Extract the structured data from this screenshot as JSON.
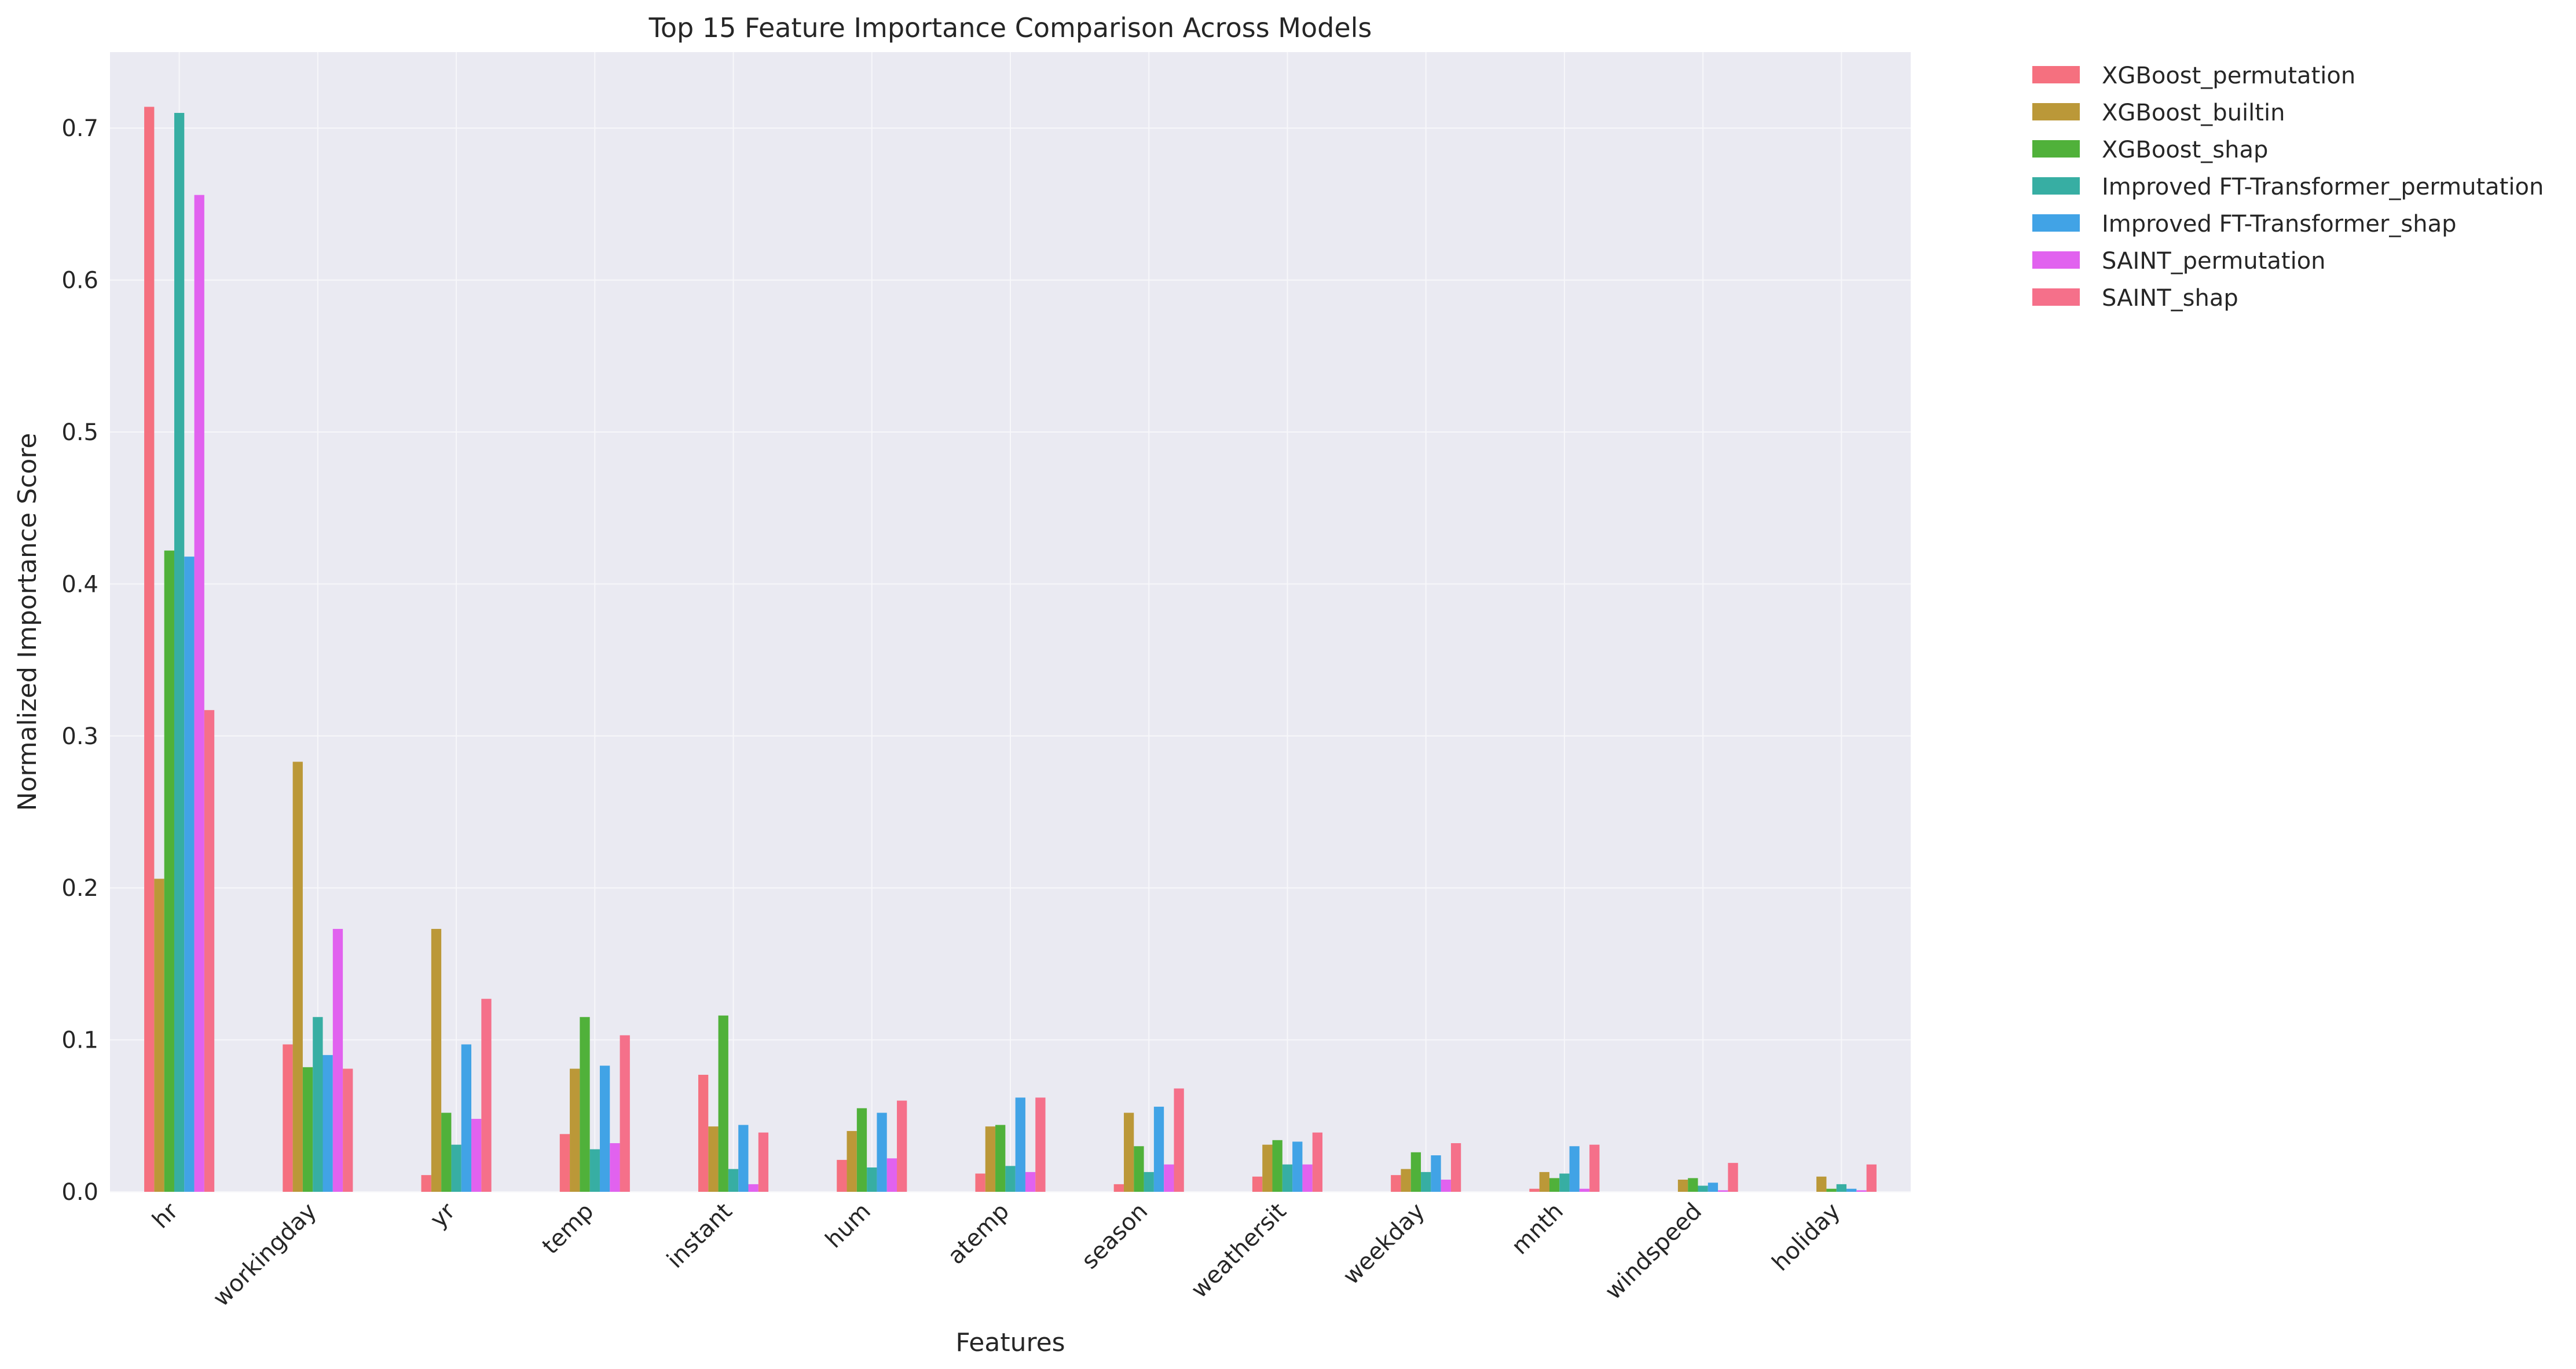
{
  "chart_data": {
    "type": "bar",
    "title": "Top 15 Feature Importance Comparison Across Models",
    "xlabel": "Features",
    "ylabel": "Normalized Importance Score",
    "ylim": [
      0,
      0.75
    ],
    "yticks": [
      "0.0",
      "0.1",
      "0.2",
      "0.3",
      "0.4",
      "0.5",
      "0.6",
      "0.7"
    ],
    "grid": true,
    "legend_position": "outside-top-right",
    "categories": [
      "hr",
      "workingday",
      "yr",
      "temp",
      "instant",
      "hum",
      "atemp",
      "season",
      "weathersit",
      "weekday",
      "mnth",
      "windspeed",
      "holiday"
    ],
    "series": [
      {
        "name": "XGBoost_permutation",
        "color": "#f5707f",
        "values": [
          0.714,
          0.097,
          0.011,
          0.038,
          0.077,
          0.021,
          0.012,
          0.005,
          0.01,
          0.011,
          0.002,
          0.0,
          0.0
        ]
      },
      {
        "name": "XGBoost_builtin",
        "color": "#bb9838",
        "values": [
          0.206,
          0.283,
          0.173,
          0.081,
          0.043,
          0.04,
          0.043,
          0.052,
          0.031,
          0.015,
          0.013,
          0.008,
          0.01
        ]
      },
      {
        "name": "XGBoost_shap",
        "color": "#50b13a",
        "values": [
          0.422,
          0.082,
          0.052,
          0.115,
          0.116,
          0.055,
          0.044,
          0.03,
          0.034,
          0.026,
          0.009,
          0.009,
          0.002
        ]
      },
      {
        "name": "Improved FT-Transformer_permutation",
        "color": "#37aea3",
        "values": [
          0.71,
          0.115,
          0.031,
          0.028,
          0.015,
          0.016,
          0.017,
          0.013,
          0.018,
          0.013,
          0.012,
          0.004,
          0.005
        ]
      },
      {
        "name": "Improved FT-Transformer_shap",
        "color": "#41a3e6",
        "values": [
          0.418,
          0.09,
          0.097,
          0.083,
          0.044,
          0.052,
          0.062,
          0.056,
          0.033,
          0.024,
          0.03,
          0.006,
          0.002
        ]
      },
      {
        "name": "SAINT_permutation",
        "color": "#e162ef",
        "values": [
          0.656,
          0.173,
          0.048,
          0.032,
          0.005,
          0.022,
          0.013,
          0.018,
          0.018,
          0.008,
          0.002,
          0.001,
          0.001
        ]
      },
      {
        "name": "SAINT_shap",
        "color": "#f5708a",
        "values": [
          0.317,
          0.081,
          0.127,
          0.103,
          0.039,
          0.06,
          0.062,
          0.068,
          0.039,
          0.032,
          0.031,
          0.019,
          0.018
        ]
      }
    ]
  }
}
